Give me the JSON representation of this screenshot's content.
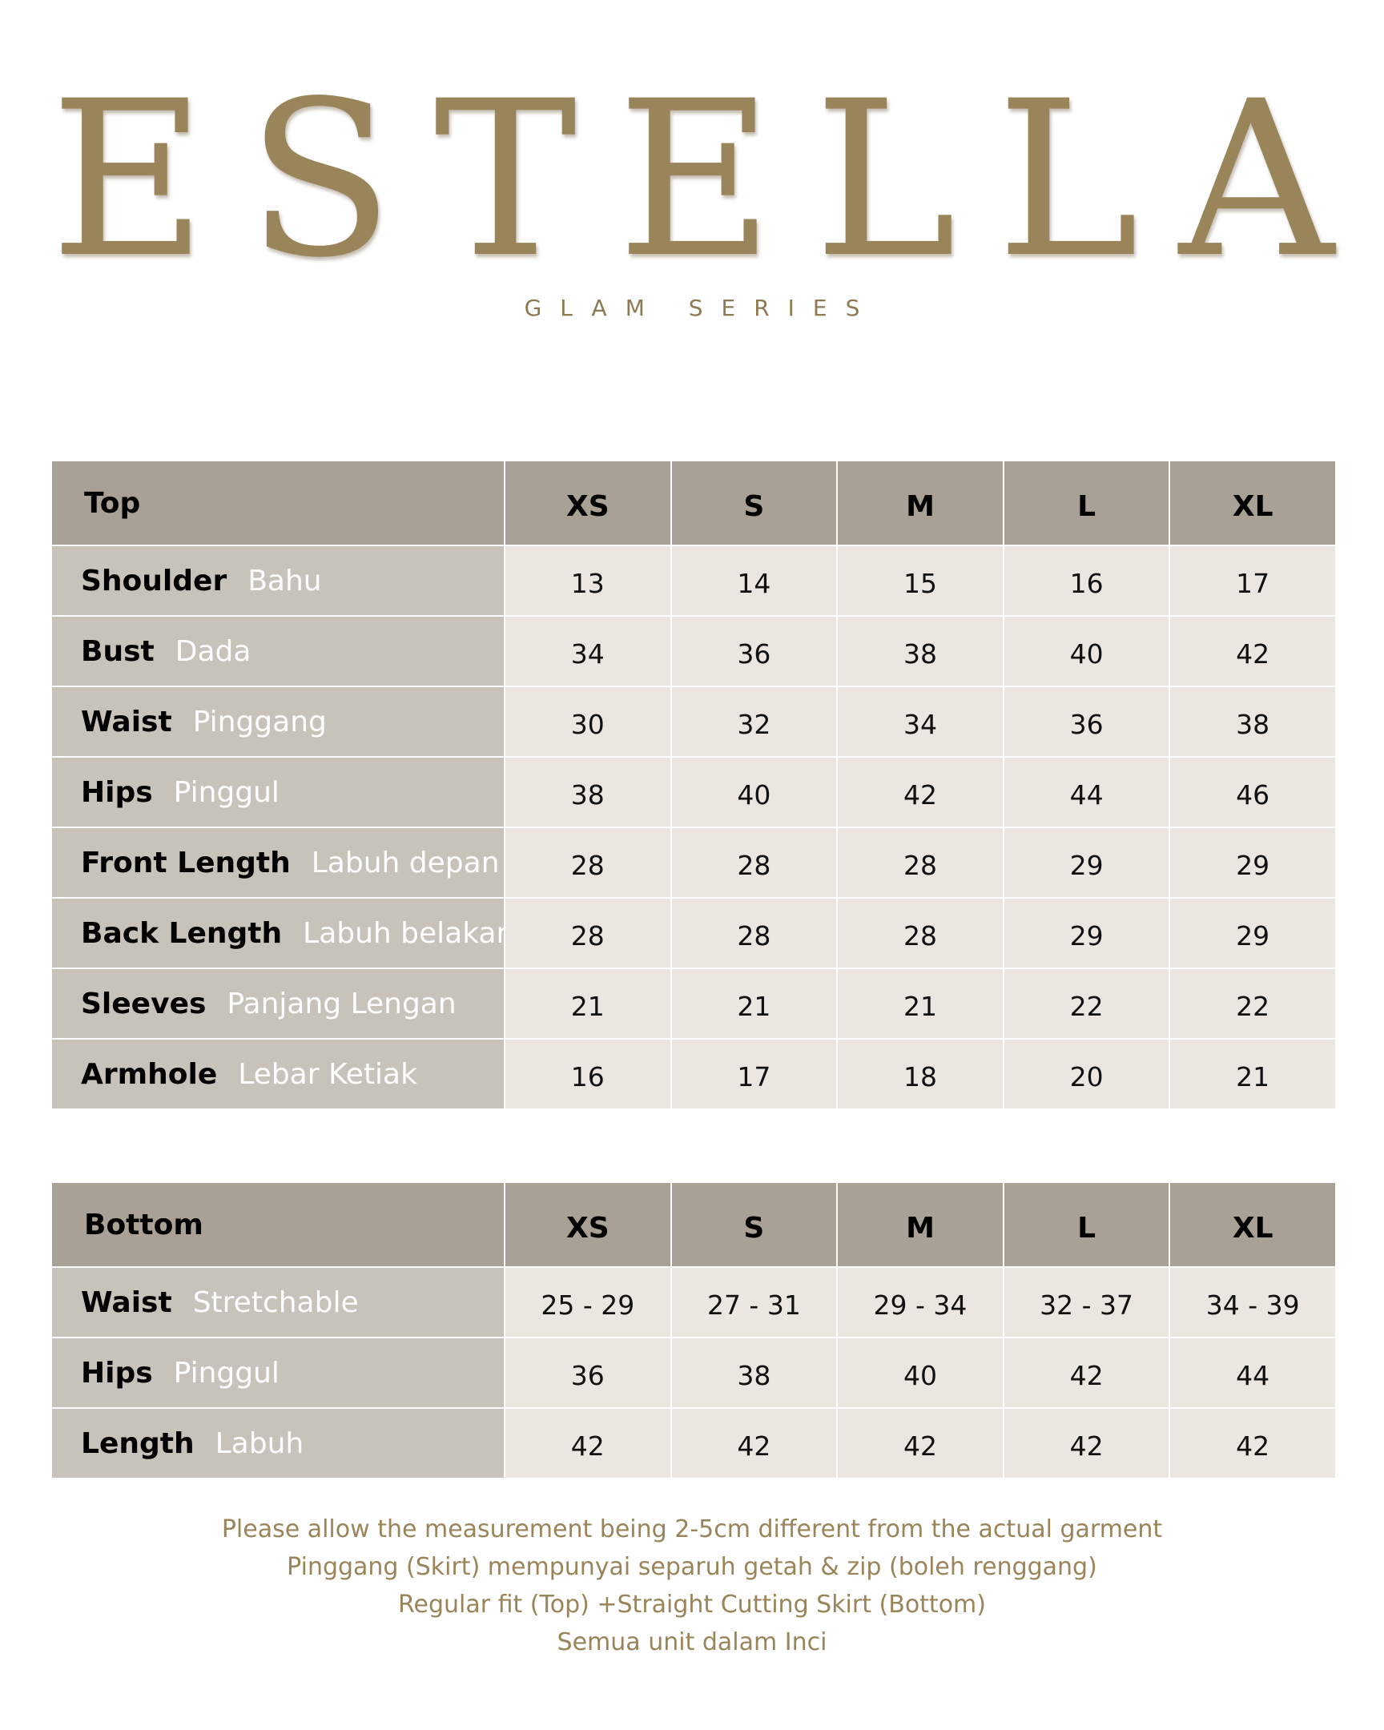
{
  "brand": {
    "title": "ESTELLA",
    "subtitle": "GLAM SERIES"
  },
  "sizes": [
    "XS",
    "S",
    "M",
    "L",
    "XL"
  ],
  "top_table": {
    "title": "Top",
    "rows": [
      {
        "label": "Shoulder",
        "label_ms": "Bahu",
        "values": [
          "13",
          "14",
          "15",
          "16",
          "17"
        ]
      },
      {
        "label": "Bust",
        "label_ms": "Dada",
        "values": [
          "34",
          "36",
          "38",
          "40",
          "42"
        ]
      },
      {
        "label": "Waist",
        "label_ms": "Pinggang",
        "values": [
          "30",
          "32",
          "34",
          "36",
          "38"
        ]
      },
      {
        "label": "Hips",
        "label_ms": "Pinggul",
        "values": [
          "38",
          "40",
          "42",
          "44",
          "46"
        ]
      },
      {
        "label": "Front Length",
        "label_ms": "Labuh depan",
        "values": [
          "28",
          "28",
          "28",
          "29",
          "29"
        ]
      },
      {
        "label": "Back Length",
        "label_ms": "Labuh belakang",
        "values": [
          "28",
          "28",
          "28",
          "29",
          "29"
        ]
      },
      {
        "label": "Sleeves",
        "label_ms": "Panjang Lengan",
        "values": [
          "21",
          "21",
          "21",
          "22",
          "22"
        ]
      },
      {
        "label": "Armhole",
        "label_ms": "Lebar Ketiak",
        "values": [
          "16",
          "17",
          "18",
          "20",
          "21"
        ]
      }
    ]
  },
  "bottom_table": {
    "title": "Bottom",
    "rows": [
      {
        "label": "Waist",
        "label_ms": "Stretchable",
        "values": [
          "25 - 29",
          "27 - 31",
          "29 - 34",
          "32 - 37",
          "34 - 39"
        ]
      },
      {
        "label": "Hips",
        "label_ms": "Pinggul",
        "values": [
          "36",
          "38",
          "40",
          "42",
          "44"
        ]
      },
      {
        "label": "Length",
        "label_ms": "Labuh",
        "values": [
          "42",
          "42",
          "42",
          "42",
          "42"
        ]
      }
    ]
  },
  "notes": [
    "Please allow the measurement being 2-5cm different from the actual garment",
    "Pinggang (Skirt) mempunyai separuh getah & zip (boleh renggang)",
    "Regular fit (Top) +Straight Cutting Skirt (Bottom)",
    "Semua unit dalam Inci"
  ],
  "colors": {
    "brand_gold": "#9a845a",
    "header_bg": "#a9a195",
    "label_bg": "#c7c3bb",
    "cell_bg": "#ebe7e0"
  }
}
